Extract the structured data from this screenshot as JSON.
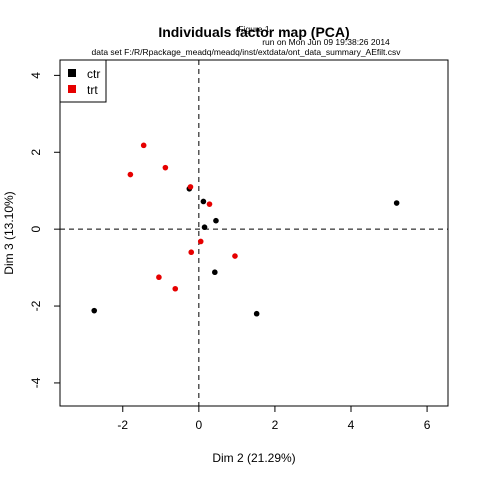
{
  "chart_data": {
    "type": "scatter",
    "title": "Individuals factor map (PCA)",
    "subtitle_lines": [
      "Figure 1",
      "run on Mon Jun 09 19:38:26 2014",
      "data set F:/R/Rpackage_meadq/meadq/inst/extdata/ont_data_summary_AEfilt.csv"
    ],
    "xlabel": "Dim 2 (21.29%)",
    "ylabel": "Dim 3 (13.10%)",
    "xlim": [
      -3.65,
      6.55
    ],
    "ylim": [
      -4.6,
      4.4
    ],
    "xticks": [
      -2,
      0,
      2,
      4,
      6
    ],
    "yticks": [
      -4,
      -2,
      0,
      2,
      4
    ],
    "reference_lines": {
      "x": 0,
      "y": 0,
      "style": "dashed"
    },
    "legend": {
      "position": "top-left"
    },
    "series": [
      {
        "name": "ctr",
        "color": "#000000",
        "points": [
          [
            -0.25,
            1.05
          ],
          [
            0.12,
            0.72
          ],
          [
            0.45,
            0.22
          ],
          [
            0.15,
            0.05
          ],
          [
            0.42,
            -1.12
          ],
          [
            1.52,
            -2.2
          ],
          [
            -2.75,
            -2.12
          ],
          [
            5.2,
            0.68
          ]
        ]
      },
      {
        "name": "trt",
        "color": "#e60000",
        "points": [
          [
            -1.45,
            2.18
          ],
          [
            -0.88,
            1.6
          ],
          [
            -1.8,
            1.42
          ],
          [
            -0.22,
            1.1
          ],
          [
            0.28,
            0.65
          ],
          [
            0.05,
            -0.32
          ],
          [
            -0.2,
            -0.6
          ],
          [
            0.95,
            -0.7
          ],
          [
            -1.05,
            -1.25
          ],
          [
            -0.62,
            -1.55
          ]
        ]
      }
    ]
  }
}
